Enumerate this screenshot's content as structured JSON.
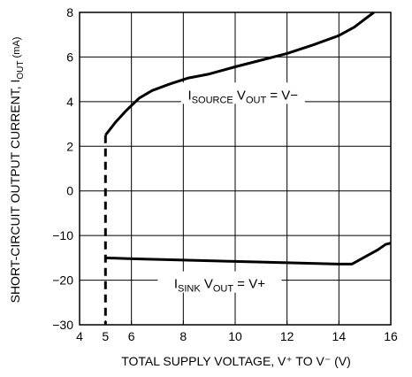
{
  "chart_data": {
    "type": "line",
    "title": "",
    "xlabel": "TOTAL SUPPLY VOLTAGE, V⁺ TO V⁻ (V)",
    "ylabel_main": "SHORT-CIRCUIT OUTPUT CURRENT, I",
    "ylabel_sub": "OUT",
    "ylabel_unit": " (mA)",
    "xlim": [
      4,
      16
    ],
    "x_ticks": [
      4,
      5,
      6,
      8,
      10,
      12,
      14,
      16
    ],
    "x_tick_labels": [
      "4",
      "5",
      "6",
      "8",
      "10",
      "12",
      "14",
      "16"
    ],
    "x_grid": [
      4,
      6,
      8,
      10,
      12,
      14,
      16
    ],
    "y_rows": [
      {
        "label": "8"
      },
      {
        "label": "6"
      },
      {
        "label": "4"
      },
      {
        "label": "2"
      },
      {
        "label": "0"
      },
      {
        "label": "−10"
      },
      {
        "label": "−20"
      },
      {
        "label": "−30"
      }
    ],
    "grid": true,
    "series": [
      {
        "name": "source",
        "style": "solid",
        "x": [
          5.0,
          5.4,
          5.8,
          6.3,
          6.8,
          7.5,
          8.2,
          9.0,
          10.0,
          11.0,
          12.0,
          13.0,
          14.0,
          14.6,
          15.0,
          15.35
        ],
        "y_row": [
          2.75,
          2.45,
          2.2,
          1.92,
          1.75,
          1.6,
          1.47,
          1.38,
          1.22,
          1.07,
          0.92,
          0.73,
          0.52,
          0.33,
          0.15,
          0.0
        ]
      },
      {
        "name": "source-dashed",
        "style": "dashed",
        "x": [
          5.0,
          5.0
        ],
        "y_row": [
          2.75,
          7.0
        ]
      },
      {
        "name": "sink",
        "style": "solid",
        "x": [
          5.0,
          6.0,
          8.0,
          10.0,
          12.0,
          14.0,
          14.5,
          15.0,
          15.5,
          15.8,
          16.0
        ],
        "y_row": [
          5.5,
          5.52,
          5.55,
          5.58,
          5.61,
          5.64,
          5.64,
          5.48,
          5.32,
          5.2,
          5.17
        ]
      }
    ],
    "annotations": [
      {
        "id": "source",
        "x": 10.3,
        "y_row": 1.85,
        "parts": [
          {
            "t": "I",
            "sub": false
          },
          {
            "t": "SOURCE",
            "sub": true
          },
          {
            "t": " V",
            "sub": false
          },
          {
            "t": "OUT",
            "sub": true
          },
          {
            "t": " = V−",
            "sub": false
          }
        ]
      },
      {
        "id": "sink",
        "x": 9.4,
        "y_row": 6.08,
        "parts": [
          {
            "t": "I",
            "sub": false
          },
          {
            "t": "SINK",
            "sub": true
          },
          {
            "t": " V",
            "sub": false
          },
          {
            "t": "OUT",
            "sub": true
          },
          {
            "t": " = V+",
            "sub": false
          }
        ]
      }
    ],
    "colors": {
      "lines": "#000000",
      "grid": "#000000",
      "background": "#ffffff"
    }
  }
}
